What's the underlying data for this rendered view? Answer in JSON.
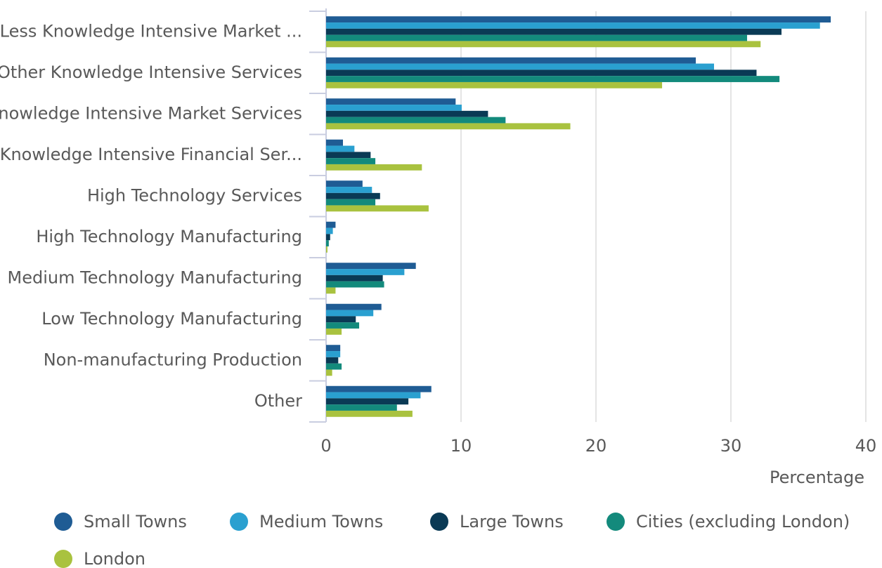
{
  "chart_data": {
    "type": "bar",
    "orientation": "horizontal",
    "x_label": "Percentage",
    "categories": [
      "Less Knowledge Intensive Market ...",
      "Other Knowledge Intensive Services",
      "Knowledge Intensive Market Services",
      "Knowledge Intensive Financial Ser...",
      "High Technology Services",
      "High Technology Manufacturing",
      "Medium Technology Manufacturing",
      "Low Technology Manufacturing",
      "Non-manufacturing Production",
      "Other"
    ],
    "series": [
      {
        "name": "Small Towns",
        "color": "#1f5c94",
        "values": [
          37.4,
          27.4,
          9.6,
          1.25,
          2.7,
          0.7,
          6.65,
          4.1,
          1.05,
          7.8
        ]
      },
      {
        "name": "Medium Towns",
        "color": "#2aa0d0",
        "values": [
          36.6,
          28.75,
          10.05,
          2.1,
          3.4,
          0.5,
          5.8,
          3.5,
          1.05,
          7.0
        ]
      },
      {
        "name": "Large Towns",
        "color": "#0a3a55",
        "values": [
          33.75,
          31.9,
          12.0,
          3.3,
          4.0,
          0.3,
          4.2,
          2.2,
          0.9,
          6.1
        ]
      },
      {
        "name": "Cities (excluding London)",
        "color": "#138a7c",
        "values": [
          31.2,
          33.6,
          13.3,
          3.65,
          3.65,
          0.2,
          4.3,
          2.45,
          1.15,
          5.25
        ]
      },
      {
        "name": "London",
        "color": "#a9c23f",
        "values": [
          32.2,
          24.9,
          18.1,
          7.1,
          7.6,
          0.1,
          0.7,
          1.15,
          0.45,
          6.4
        ]
      }
    ],
    "xlim": [
      0,
      40
    ],
    "xticks": [
      0,
      10,
      20,
      30,
      40
    ],
    "grid": true
  }
}
